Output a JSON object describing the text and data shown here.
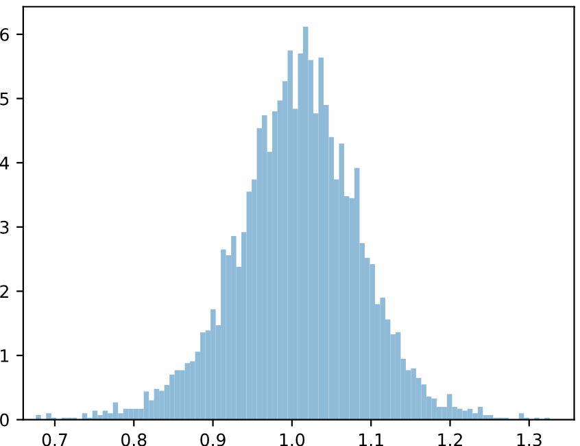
{
  "chart_data": {
    "type": "histogram",
    "bins": [
      0.676,
      0.6825,
      0.689,
      0.6955,
      0.702,
      0.7085,
      0.715,
      0.7215,
      0.728,
      0.7345,
      0.741,
      0.7475,
      0.754,
      0.7605,
      0.767,
      0.7735,
      0.78,
      0.7865,
      0.793,
      0.7995,
      0.806,
      0.8125,
      0.819,
      0.8255,
      0.832,
      0.8385,
      0.845,
      0.8515,
      0.858,
      0.8645,
      0.871,
      0.8775,
      0.884,
      0.8905,
      0.897,
      0.9035,
      0.91,
      0.9165,
      0.923,
      0.9295,
      0.936,
      0.9425,
      0.949,
      0.9555,
      0.962,
      0.9685,
      0.975,
      0.9815,
      0.988,
      0.9945,
      1.001,
      1.0075,
      1.014,
      1.0205,
      1.027,
      1.0335,
      1.04,
      1.0465,
      1.053,
      1.0595,
      1.066,
      1.0725,
      1.079,
      1.0855,
      1.092,
      1.0985,
      1.105,
      1.1115,
      1.118,
      1.1245,
      1.131,
      1.1375,
      1.144,
      1.1505,
      1.157,
      1.1635,
      1.17,
      1.1765,
      1.183,
      1.1895,
      1.196,
      1.2025,
      1.209,
      1.2155,
      1.222,
      1.2285,
      1.235,
      1.2415,
      1.248,
      1.2545,
      1.261,
      1.2675,
      1.274,
      1.2805,
      1.287,
      1.2935,
      1.3,
      1.3065,
      1.313,
      1.3195,
      1.326
    ],
    "values": [
      0.07,
      0,
      0.1,
      0.03,
      0,
      0.03,
      0.03,
      0.03,
      0,
      0.1,
      0.03,
      0.14,
      0.07,
      0.14,
      0.1,
      0.27,
      0.1,
      0.17,
      0.17,
      0.17,
      0.17,
      0.44,
      0.3,
      0.48,
      0.45,
      0.54,
      0.7,
      0.77,
      0.77,
      0.88,
      0.91,
      1.06,
      1.36,
      1.39,
      1.72,
      1.47,
      2.65,
      2.56,
      2.86,
      2.38,
      2.92,
      3.55,
      3.74,
      4.54,
      4.74,
      4.17,
      4.8,
      4.97,
      5.27,
      5.75,
      4.84,
      5.7,
      6.12,
      5.6,
      4.77,
      5.64,
      4.9,
      4.4,
      3.74,
      4.3,
      3.48,
      3.45,
      3.92,
      2.75,
      2.52,
      2.42,
      1.8,
      1.9,
      1.56,
      1.33,
      1.36,
      0.95,
      0.77,
      0.8,
      0.65,
      0.55,
      0.36,
      0.33,
      0.2,
      0.2,
      0.4,
      0.2,
      0.17,
      0.14,
      0.17,
      0.1,
      0.2,
      0.07,
      0.07,
      0.03,
      0.03,
      0.03,
      0,
      0,
      0.1,
      0.03,
      0,
      0.03,
      0,
      0.03
    ],
    "color": "#8fbbd9",
    "xlim": [
      0.66,
      1.357
    ],
    "xticks": [
      {
        "value": 0.7,
        "label": "0.7"
      },
      {
        "value": 0.8,
        "label": "0.8"
      },
      {
        "value": 0.9,
        "label": "0.9"
      },
      {
        "value": 1.0,
        "label": "1.0"
      },
      {
        "value": 1.1,
        "label": "1.1"
      },
      {
        "value": 1.2,
        "label": "1.2"
      },
      {
        "value": 1.3,
        "label": "1.3"
      }
    ],
    "ylim": [
      0,
      6.43
    ],
    "yticks": [
      0,
      1,
      2,
      3,
      4,
      5,
      6
    ],
    "grid": false
  }
}
